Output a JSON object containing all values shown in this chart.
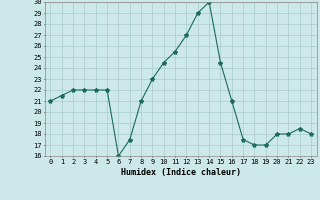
{
  "x": [
    0,
    1,
    2,
    3,
    4,
    5,
    6,
    7,
    8,
    9,
    10,
    11,
    12,
    13,
    14,
    15,
    16,
    17,
    18,
    19,
    20,
    21,
    22,
    23
  ],
  "y": [
    21,
    21.5,
    22,
    22,
    22,
    22,
    16,
    17.5,
    21,
    23,
    24.5,
    25.5,
    27,
    29,
    30,
    24.5,
    21,
    17.5,
    17,
    17,
    18,
    18,
    18.5,
    18
  ],
  "line_color": "#1a6b5a",
  "marker": "*",
  "marker_size": 3,
  "bg_color": "#cce8e8",
  "grid_color": "#aacccc",
  "xlabel": "Humidex (Indice chaleur)",
  "xlim": [
    -0.5,
    23.5
  ],
  "ylim": [
    16,
    30
  ],
  "yticks": [
    16,
    17,
    18,
    19,
    20,
    21,
    22,
    23,
    24,
    25,
    26,
    27,
    28,
    29,
    30
  ],
  "xticks": [
    0,
    1,
    2,
    3,
    4,
    5,
    6,
    7,
    8,
    9,
    10,
    11,
    12,
    13,
    14,
    15,
    16,
    17,
    18,
    19,
    20,
    21,
    22,
    23
  ],
  "axis_fontsize": 6,
  "tick_fontsize": 5
}
